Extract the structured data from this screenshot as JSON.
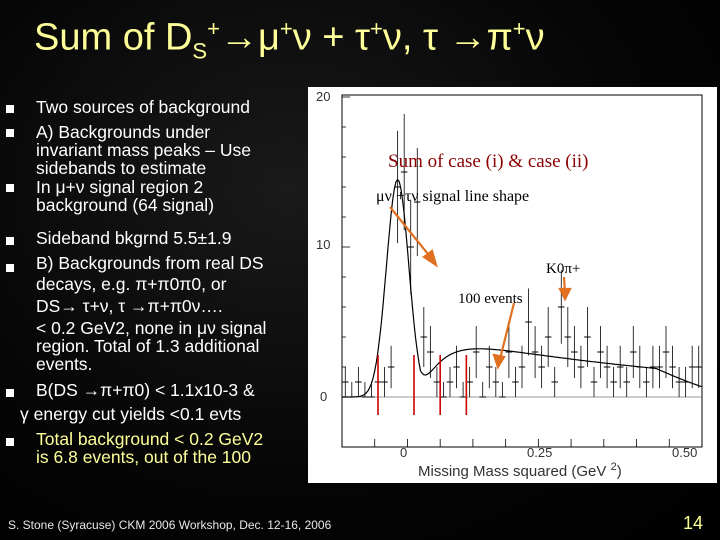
{
  "slide": {
    "title_parts": [
      "Sum of D",
      "S",
      "+",
      "→μ",
      "+",
      "ν + τ",
      "+",
      "ν, τ →π",
      "+",
      "ν"
    ]
  },
  "bullets": [
    {
      "lines": [
        "Two sources of background"
      ]
    },
    {
      "lines": [
        "A) Backgrounds under",
        "invariant mass peaks – Use",
        "sidebands to estimate"
      ]
    },
    {
      "lines": [
        "In μ+ν signal region 2",
        "background (64 signal)"
      ]
    },
    {
      "lines": [
        "Sideband bkgrnd 5.5±1.9"
      ]
    },
    {
      "lines": [
        "B) Backgrounds from real DS",
        "decays, e.g. π+π0π0, or",
        "DS→ τ+ν, τ →π+π0ν….",
        "< 0.2 GeV2, none in μν signal",
        "region. Total of 1.3 additional",
        "events."
      ]
    },
    {
      "lines": [
        "B(DS →π+π0) < 1.1x10-3 &",
        "γ energy cut yields <0.1 evts"
      ]
    },
    {
      "lines": [
        "Total background < 0.2 GeV2",
        "is 6.8 events, out of the 100"
      ]
    }
  ],
  "plot": {
    "annotation_sum": "Sum of case (i) & case (ii)",
    "annotation_shape": "μν +τν signal line shape",
    "annotation_k": "K0π+",
    "annotation_events": "100 events",
    "y_ticks": [
      "20",
      "10",
      "0"
    ],
    "x_ticks": [
      "0",
      "0.25",
      "0.50"
    ],
    "x_label": "Missing Mass squared (GeV",
    "x_label_sup": "2",
    "x_label_end": ")"
  },
  "chart_data": {
    "type": "bar",
    "xlabel": "Missing Mass squared (GeV 2)",
    "ylabel": "",
    "xlim": [
      -0.05,
      0.5
    ],
    "ylim": [
      -1,
      22
    ],
    "bin_width": 0.01,
    "x_start": -0.05,
    "values": [
      1,
      0,
      1,
      0,
      0,
      1,
      1,
      2,
      14,
      15,
      10,
      13,
      4,
      3,
      1,
      0,
      1,
      2,
      0,
      1,
      3,
      0,
      2,
      1,
      0,
      3,
      1,
      2,
      5,
      3,
      2,
      4,
      1,
      6,
      4,
      3,
      2,
      4,
      1,
      3,
      2,
      1,
      2,
      1,
      3,
      2,
      1,
      2,
      2,
      3,
      2,
      1,
      1,
      2,
      2
    ],
    "fit_curve": "gaussian peak near 0.035 GeV2 plus smooth falling background",
    "signal_window_lines": [
      0.005,
      0.06
    ],
    "sideband_lines": [
      0.1,
      0.14
    ]
  },
  "colors": {
    "title": "#ffff99",
    "text": "#ffffff",
    "arrow_orange": "#e07020",
    "signal_line": "#cc0000"
  },
  "footer": {
    "text": "S. Stone (Syracuse) CKM 2006 Workshop, Dec. 12-16, 2006",
    "page": "14"
  }
}
